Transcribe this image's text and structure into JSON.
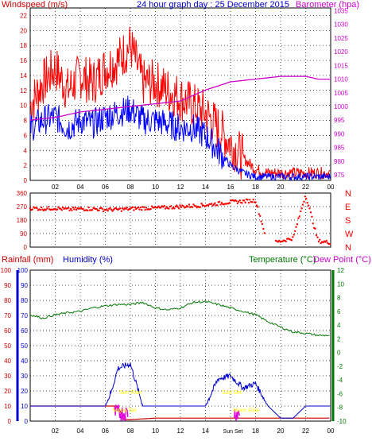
{
  "header": {
    "left_title": "Windspeed (m/s)",
    "center_title": "24 hour graph day : 25 December 2015",
    "right_title": "Barometer (hpa)"
  },
  "lower_header": {
    "rain_label": "Rainfall (mm)",
    "humidity_label": "Humidity (%)",
    "temp_label": "Temperature (°C)",
    "dew_label": "Dew Point (°C)"
  },
  "colors": {
    "wind_avg": "#0000ff",
    "wind_gust": "#ff0000",
    "barometer": "#cc00cc",
    "direction": "#ff0000",
    "humidity": "#0000cc",
    "rain": "#cc0000",
    "temperature": "#007700",
    "dewpoint": "#dd00dd",
    "sun_label": "#ffff00",
    "axis_text_left": "#cc0000",
    "axis_text_right": "#cc00cc"
  },
  "chart_data": [
    {
      "type": "line",
      "name": "wind",
      "x_unit": "hour",
      "x_ticks": [
        "02",
        "04",
        "06",
        "08",
        "10",
        "12",
        "14",
        "16",
        "18",
        "20",
        "22",
        "00"
      ],
      "y_left_ticks": [
        0,
        2,
        4,
        6,
        8,
        10,
        12,
        14,
        16,
        18,
        20,
        22
      ],
      "y_right_ticks": [
        975,
        980,
        985,
        990,
        995,
        1000,
        1005,
        1010,
        1015,
        1020,
        1025,
        1030,
        1035
      ],
      "ylim_left": [
        0,
        23
      ],
      "ylim_right": [
        973,
        1036
      ],
      "series": [
        {
          "name": "avg",
          "axis": "left",
          "x": [
            0,
            1,
            2,
            3,
            4,
            5,
            6,
            7,
            8,
            9,
            10,
            11,
            12,
            13,
            14,
            15,
            16,
            17,
            18,
            19,
            20,
            21,
            22,
            23,
            24
          ],
          "y": [
            7,
            8,
            8.5,
            7,
            8,
            7.5,
            8.5,
            9,
            9.5,
            8,
            8,
            7.5,
            7,
            7,
            6,
            4,
            2,
            1,
            0.5,
            0.5,
            0.5,
            0.5,
            0.5,
            0.5,
            0.5
          ]
        },
        {
          "name": "gust",
          "axis": "left",
          "x": [
            0,
            1,
            2,
            3,
            4,
            5,
            6,
            7,
            8,
            9,
            10,
            11,
            12,
            13,
            14,
            15,
            16,
            17,
            18,
            19,
            20,
            21,
            22,
            23,
            24
          ],
          "y": [
            10,
            13,
            15,
            12,
            14,
            13,
            15,
            16,
            18,
            13,
            13,
            12,
            11,
            10,
            9,
            7,
            5,
            3,
            1.5,
            1,
            1,
            1,
            1,
            1,
            1
          ]
        },
        {
          "name": "barometer",
          "axis": "right",
          "x": [
            0,
            2,
            4,
            6,
            8,
            10,
            12,
            14,
            16,
            18,
            20,
            21,
            22,
            23,
            24
          ],
          "y": [
            995,
            996,
            998,
            999,
            1000,
            1001,
            1002,
            1006,
            1009,
            1010,
            1011,
            1011,
            1011,
            1010,
            1010
          ]
        }
      ]
    },
    {
      "type": "scatter",
      "name": "direction",
      "y_left_ticks": [
        0,
        90,
        180,
        270,
        360
      ],
      "y_right_labels": [
        "N",
        "W",
        "S",
        "E",
        "N"
      ],
      "ylim": [
        0,
        360
      ],
      "series": [
        {
          "name": "direction",
          "x": [
            0,
            1,
            2,
            3,
            4,
            5,
            6,
            7,
            8,
            9,
            10,
            11,
            12,
            13,
            14,
            15,
            16,
            17,
            18,
            19,
            20,
            21,
            22,
            23,
            24
          ],
          "y": [
            260,
            255,
            260,
            250,
            255,
            255,
            250,
            250,
            255,
            260,
            260,
            265,
            270,
            275,
            280,
            290,
            300,
            305,
            310,
            20,
            40,
            60,
            350,
            40,
            30
          ]
        }
      ]
    },
    {
      "type": "line",
      "name": "rain_humidity_temp",
      "y_left_ticks": [
        0,
        10,
        20,
        30,
        40,
        50,
        60,
        70,
        80,
        90,
        100
      ],
      "y_right_ticks": [
        12,
        10,
        8,
        6,
        4,
        2,
        0,
        -2,
        -4,
        -6,
        -8,
        -10
      ],
      "ylim_left": [
        0,
        100
      ],
      "ylim_right": [
        -10,
        12
      ],
      "series": [
        {
          "name": "humidity",
          "axis": "left",
          "x": [
            0,
            2,
            4,
            6,
            6.5,
            7,
            8,
            9,
            10,
            12,
            14,
            15,
            16,
            17,
            18,
            19,
            20,
            21,
            22,
            23,
            24
          ],
          "y": [
            10,
            10,
            10,
            10,
            20,
            35,
            38,
            10,
            10,
            10,
            10,
            28,
            30,
            22,
            25,
            10,
            2,
            2,
            10,
            10,
            10
          ]
        },
        {
          "name": "rain",
          "axis": "left",
          "x": [
            0,
            6,
            7,
            7.5,
            8,
            10,
            14,
            16,
            18,
            20,
            22,
            24
          ],
          "y": [
            10,
            10,
            10,
            1,
            1,
            2,
            2,
            2,
            2,
            2,
            2,
            2
          ]
        },
        {
          "name": "temperature",
          "axis": "right",
          "x": [
            0,
            1,
            2,
            3,
            4,
            5,
            6,
            7,
            8,
            9,
            10,
            11,
            12,
            13,
            14,
            15,
            16,
            17,
            18,
            19,
            20,
            21,
            22,
            23,
            24
          ],
          "y": [
            5.5,
            5,
            5.5,
            5.8,
            6,
            6.5,
            6.8,
            7,
            7,
            7.3,
            6.5,
            6.2,
            6.5,
            7.3,
            7.4,
            7,
            6.5,
            6,
            5.5,
            4.5,
            3.7,
            3,
            2.8,
            2.5,
            2.5
          ]
        },
        {
          "name": "dewpoint",
          "axis": "right",
          "x": [
            6.8,
            7,
            7.2,
            7.5,
            7.8,
            8.0,
            16.5,
            17
          ],
          "y": [
            -7,
            -9,
            -8,
            -9,
            -10,
            -10,
            -9,
            -10
          ]
        }
      ],
      "annotations": [
        "Sun Rise",
        "Moon Set",
        "Sun Set",
        "Moon Rise"
      ]
    }
  ]
}
